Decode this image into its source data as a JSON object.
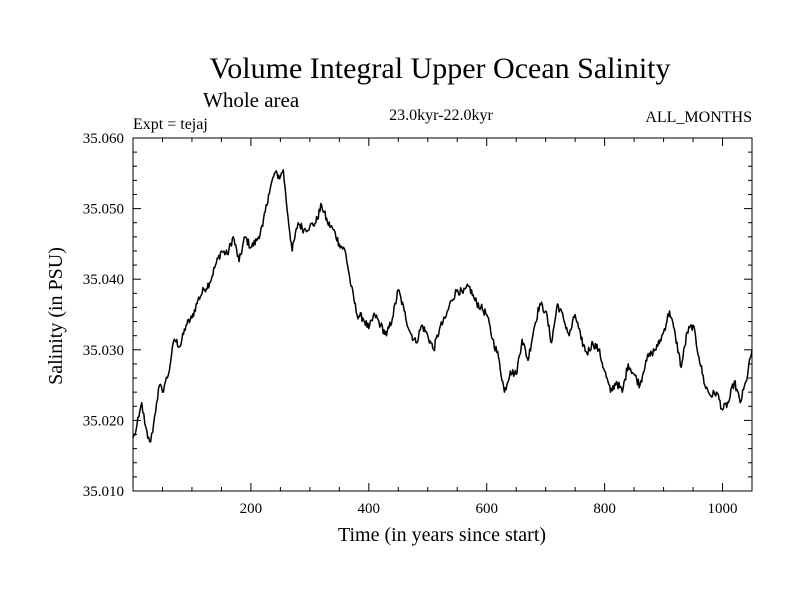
{
  "chart_data": {
    "type": "line",
    "title": "Volume Integral Upper Ocean Salinity",
    "subtitle": "Whole area",
    "left_label": "Expt = tejaj",
    "center_label": "23.0kyr-22.0kyr",
    "right_label": "ALL_MONTHS",
    "xlabel": "Time (in years since start)",
    "ylabel": "Salinity (in PSU)",
    "xlim": [
      0,
      1050
    ],
    "ylim": [
      35.01,
      35.06
    ],
    "x_ticks": [
      200,
      400,
      600,
      800,
      1000
    ],
    "y_ticks": [
      "35.010",
      "35.020",
      "35.030",
      "35.040",
      "35.050",
      "35.060"
    ],
    "grid": false,
    "series": [
      {
        "name": "salinity",
        "color": "#000000",
        "x": [
          0,
          5,
          10,
          15,
          20,
          25,
          30,
          35,
          40,
          45,
          50,
          55,
          60,
          65,
          70,
          80,
          90,
          100,
          110,
          120,
          130,
          140,
          150,
          160,
          170,
          180,
          190,
          200,
          210,
          220,
          230,
          240,
          250,
          255,
          260,
          270,
          280,
          290,
          300,
          310,
          320,
          330,
          340,
          350,
          360,
          370,
          380,
          390,
          400,
          410,
          420,
          430,
          440,
          450,
          460,
          470,
          480,
          490,
          500,
          510,
          520,
          530,
          540,
          550,
          560,
          570,
          580,
          590,
          600,
          610,
          620,
          630,
          640,
          650,
          660,
          670,
          680,
          690,
          700,
          710,
          720,
          730,
          740,
          750,
          760,
          770,
          780,
          790,
          800,
          810,
          820,
          830,
          840,
          850,
          860,
          870,
          880,
          890,
          900,
          910,
          920,
          930,
          940,
          950,
          960,
          970,
          980,
          990,
          1000,
          1010,
          1020,
          1030,
          1040,
          1050
        ],
        "values": [
          35.0175,
          35.0185,
          35.0205,
          35.0225,
          35.0195,
          35.0175,
          35.017,
          35.0195,
          35.0225,
          35.025,
          35.024,
          35.0255,
          35.0265,
          35.029,
          35.0315,
          35.0305,
          35.0335,
          35.0345,
          35.037,
          35.0385,
          35.0395,
          35.042,
          35.044,
          35.0435,
          35.046,
          35.0425,
          35.046,
          35.0445,
          35.0455,
          35.0475,
          35.052,
          35.055,
          35.0545,
          35.0555,
          35.051,
          35.044,
          35.048,
          35.047,
          35.0475,
          35.048,
          35.0505,
          35.048,
          35.047,
          35.045,
          35.044,
          35.039,
          35.035,
          35.0345,
          35.033,
          35.035,
          35.0335,
          35.032,
          35.0345,
          35.0385,
          35.0355,
          35.0325,
          35.031,
          35.0335,
          35.032,
          35.03,
          35.033,
          35.0345,
          35.037,
          35.0385,
          35.038,
          35.039,
          35.037,
          35.036,
          35.035,
          35.0315,
          35.029,
          35.024,
          35.027,
          35.0265,
          35.0315,
          35.0285,
          35.033,
          35.0365,
          35.0355,
          35.031,
          35.0365,
          35.0345,
          35.032,
          35.035,
          35.0315,
          35.0295,
          35.031,
          35.03,
          35.027,
          35.024,
          35.0255,
          35.024,
          35.028,
          35.0265,
          35.025,
          35.0285,
          35.0295,
          35.0305,
          35.0325,
          35.0355,
          35.032,
          35.0275,
          35.0325,
          35.0335,
          35.029,
          35.025,
          35.0235,
          35.024,
          35.0215,
          35.0225,
          35.0255,
          35.0225,
          35.0255,
          35.03
        ]
      }
    ]
  }
}
